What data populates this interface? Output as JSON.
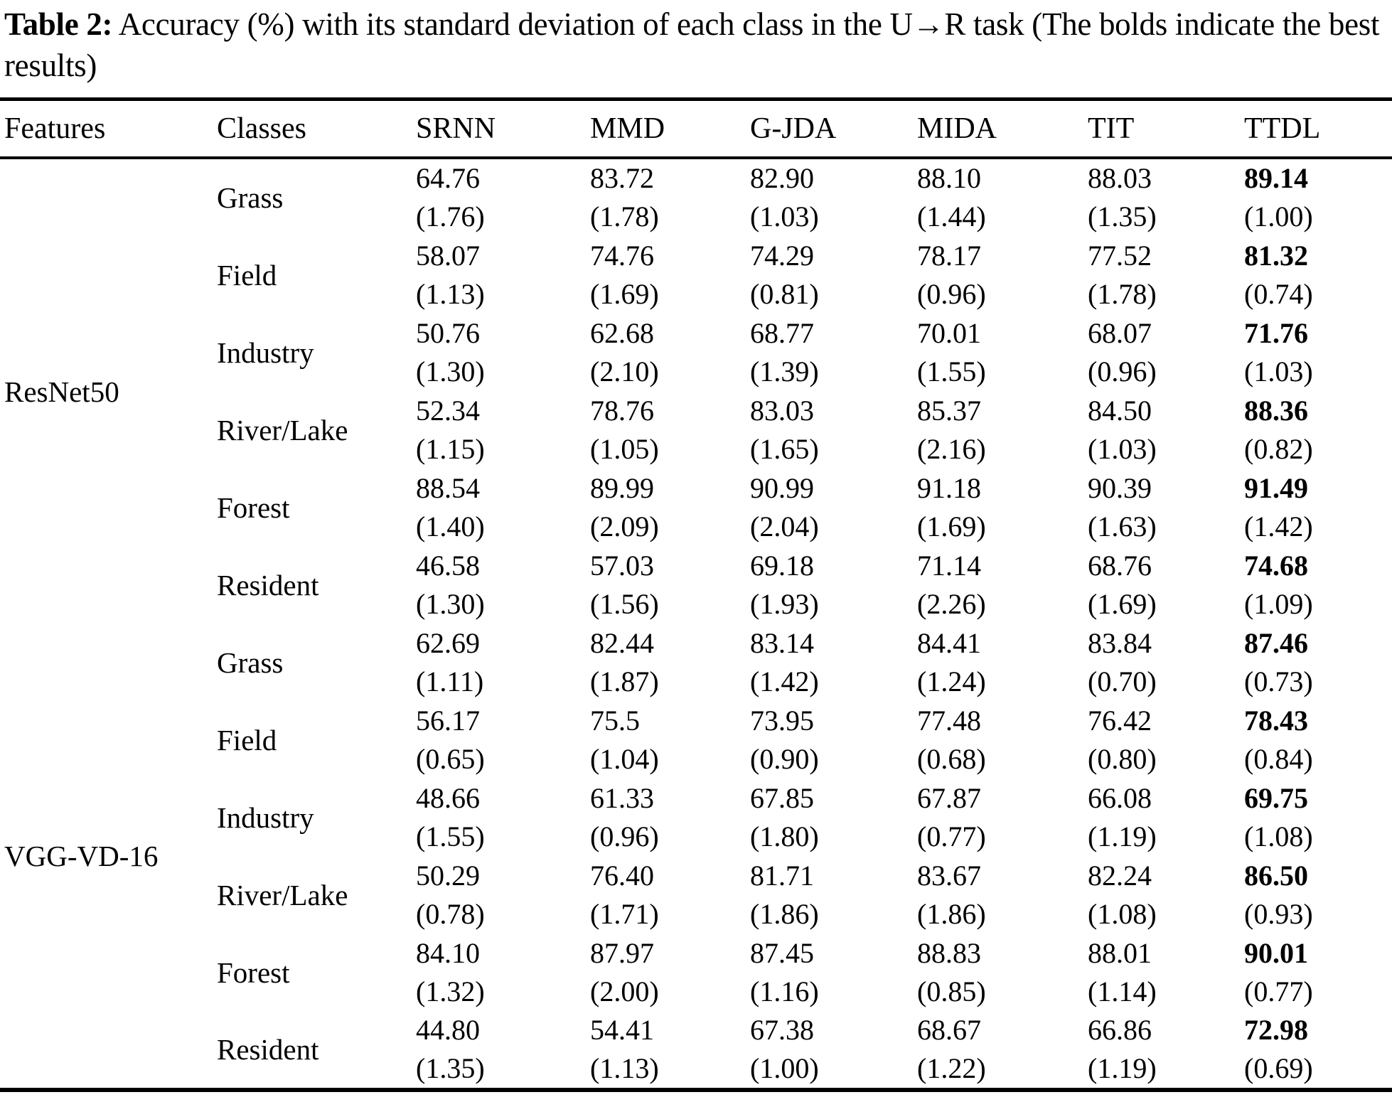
{
  "caption": {
    "label": "Table 2:",
    "text": " Accuracy (%) with its standard deviation of each class in the U→R task (The bolds indicate the best results)"
  },
  "table": {
    "columns": [
      "Features",
      "Classes",
      "SRNN",
      "MMD",
      "G-JDA",
      "MIDA",
      "TIT",
      "TTDL"
    ],
    "bold_column": "TTDL",
    "bold_index": 5,
    "groups": [
      {
        "feature": "ResNet50",
        "rows": [
          {
            "class": "Grass",
            "values": [
              "64.76",
              "83.72",
              "82.90",
              "88.10",
              "88.03",
              "89.14"
            ],
            "stds": [
              "(1.76)",
              "(1.78)",
              "(1.03)",
              "(1.44)",
              "(1.35)",
              "(1.00)"
            ]
          },
          {
            "class": "Field",
            "values": [
              "58.07",
              "74.76",
              "74.29",
              "78.17",
              "77.52",
              "81.32"
            ],
            "stds": [
              "(1.13)",
              "(1.69)",
              "(0.81)",
              "(0.96)",
              "(1.78)",
              "(0.74)"
            ]
          },
          {
            "class": "Industry",
            "values": [
              "50.76",
              "62.68",
              "68.77",
              "70.01",
              "68.07",
              "71.76"
            ],
            "stds": [
              "(1.30)",
              "(2.10)",
              "(1.39)",
              "(1.55)",
              "(0.96)",
              "(1.03)"
            ]
          },
          {
            "class": "River/Lake",
            "values": [
              "52.34",
              "78.76",
              "83.03",
              "85.37",
              "84.50",
              "88.36"
            ],
            "stds": [
              "(1.15)",
              "(1.05)",
              "(1.65)",
              "(2.16)",
              "(1.03)",
              "(0.82)"
            ]
          },
          {
            "class": "Forest",
            "values": [
              "88.54",
              "89.99",
              "90.99",
              "91.18",
              "90.39",
              "91.49"
            ],
            "stds": [
              "(1.40)",
              "(2.09)",
              "(2.04)",
              "(1.69)",
              "(1.63)",
              "(1.42)"
            ]
          },
          {
            "class": "Resident",
            "values": [
              "46.58",
              "57.03",
              "69.18",
              "71.14",
              "68.76",
              "74.68"
            ],
            "stds": [
              "(1.30)",
              "(1.56)",
              "(1.93)",
              "(2.26)",
              "(1.69)",
              "(1.09)"
            ]
          }
        ]
      },
      {
        "feature": "VGG-VD-16",
        "rows": [
          {
            "class": "Grass",
            "values": [
              "62.69",
              "82.44",
              "83.14",
              "84.41",
              "83.84",
              "87.46"
            ],
            "stds": [
              "(1.11)",
              "(1.87)",
              "(1.42)",
              "(1.24)",
              "(0.70)",
              "(0.73)"
            ]
          },
          {
            "class": "Field",
            "values": [
              "56.17",
              "75.5",
              "73.95",
              "77.48",
              "76.42",
              "78.43"
            ],
            "stds": [
              "(0.65)",
              "(1.04)",
              "(0.90)",
              "(0.68)",
              "(0.80)",
              "(0.84)"
            ]
          },
          {
            "class": "Industry",
            "values": [
              "48.66",
              "61.33",
              "67.85",
              "67.87",
              "66.08",
              "69.75"
            ],
            "stds": [
              "(1.55)",
              "(0.96)",
              "(1.80)",
              "(0.77)",
              "(1.19)",
              "(1.08)"
            ]
          },
          {
            "class": "River/Lake",
            "values": [
              "50.29",
              "76.40",
              "81.71",
              "83.67",
              "82.24",
              "86.50"
            ],
            "stds": [
              "(0.78)",
              "(1.71)",
              "(1.86)",
              "(1.86)",
              "(1.08)",
              "(0.93)"
            ]
          },
          {
            "class": "Forest",
            "values": [
              "84.10",
              "87.97",
              "87.45",
              "88.83",
              "88.01",
              "90.01"
            ],
            "stds": [
              "(1.32)",
              "(2.00)",
              "(1.16)",
              "(0.85)",
              "(1.14)",
              "(0.77)"
            ]
          },
          {
            "class": "Resident",
            "values": [
              "44.80",
              "54.41",
              "67.38",
              "68.67",
              "66.86",
              "72.98"
            ],
            "stds": [
              "(1.35)",
              "(1.13)",
              "(1.00)",
              "(1.22)",
              "(1.19)",
              "(0.69)"
            ]
          }
        ]
      }
    ]
  }
}
